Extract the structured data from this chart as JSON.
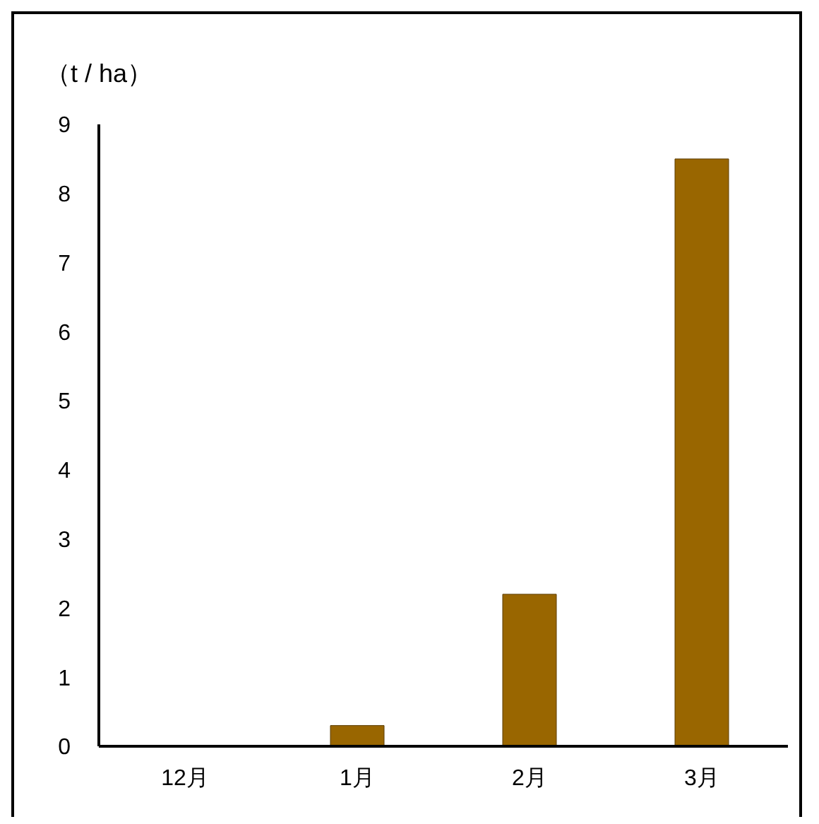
{
  "chart_data": {
    "type": "bar",
    "ylabel": "（t / ha）",
    "categories": [
      "12月",
      "1月",
      "2月",
      "3月"
    ],
    "values": [
      0,
      0.3,
      2.2,
      8.5
    ],
    "color": "#996600",
    "ylim": [
      0,
      9
    ],
    "yticks": [
      0,
      1,
      2,
      3,
      4,
      5,
      6,
      7,
      8,
      9
    ],
    "grid": false
  }
}
